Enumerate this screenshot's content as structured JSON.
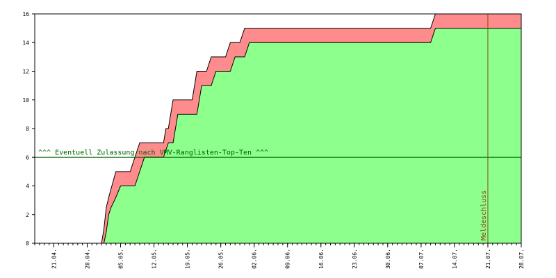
{
  "chart_data": {
    "type": "area",
    "title": "",
    "xlabel": "",
    "ylabel": "",
    "ylim": [
      0,
      16
    ],
    "y_ticks": [
      0,
      2,
      4,
      6,
      8,
      10,
      12,
      14,
      16
    ],
    "x_range_days": [
      0,
      100
    ],
    "x_ticks": [
      {
        "label": "21.04.",
        "day": 4
      },
      {
        "label": "28.04.",
        "day": 11
      },
      {
        "label": "05.05.",
        "day": 18
      },
      {
        "label": "12.05.",
        "day": 25
      },
      {
        "label": "19.05.",
        "day": 32
      },
      {
        "label": "26.05.",
        "day": 39
      },
      {
        "label": "02.06.",
        "day": 46
      },
      {
        "label": "09.06.",
        "day": 53
      },
      {
        "label": "16.06.",
        "day": 60
      },
      {
        "label": "23.06.",
        "day": 67
      },
      {
        "label": "30.06.",
        "day": 74
      },
      {
        "label": "07.07.",
        "day": 81
      },
      {
        "label": "14.07.",
        "day": 88
      },
      {
        "label": "21.07.",
        "day": 95
      },
      {
        "label": "28.07.",
        "day": 102
      }
    ],
    "grid": false,
    "series": [
      {
        "color": "#ff8c8c",
        "points": [
          [
            0,
            0
          ],
          [
            14,
            0
          ],
          [
            14.5,
            1
          ],
          [
            15,
            2.5
          ],
          [
            15.5,
            3.2
          ],
          [
            16,
            3.8
          ],
          [
            17,
            5
          ],
          [
            20,
            5
          ],
          [
            21,
            6
          ],
          [
            22,
            7
          ],
          [
            27,
            7
          ],
          [
            27.5,
            8
          ],
          [
            28,
            8
          ],
          [
            29,
            10
          ],
          [
            33,
            10
          ],
          [
            34,
            12
          ],
          [
            36,
            12
          ],
          [
            37,
            13
          ],
          [
            40,
            13
          ],
          [
            41,
            14
          ],
          [
            43,
            14
          ],
          [
            44,
            15
          ],
          [
            83,
            15
          ],
          [
            84,
            16
          ],
          [
            102,
            16
          ]
        ]
      },
      {
        "color": "#8cff8c",
        "points": [
          [
            0,
            0
          ],
          [
            14.5,
            0
          ],
          [
            15,
            0.8
          ],
          [
            15.5,
            2
          ],
          [
            16,
            2.5
          ],
          [
            17,
            3.2
          ],
          [
            18,
            4
          ],
          [
            21,
            4
          ],
          [
            22,
            5
          ],
          [
            23,
            6
          ],
          [
            27,
            6
          ],
          [
            28,
            7
          ],
          [
            29,
            7
          ],
          [
            30,
            9
          ],
          [
            34,
            9
          ],
          [
            35,
            11
          ],
          [
            37,
            11
          ],
          [
            38,
            12
          ],
          [
            41,
            12
          ],
          [
            42,
            13
          ],
          [
            44,
            13
          ],
          [
            45,
            14
          ],
          [
            83,
            14
          ],
          [
            84,
            15
          ],
          [
            102,
            15
          ]
        ]
      }
    ],
    "annotations": [
      {
        "text": "^^^ Eventuell Zulassung nach VMV-Ranglisten-Top-Ten ^^^",
        "y": 6,
        "color": "#006400"
      },
      {
        "text": "Meldeschluss",
        "x": 95,
        "color": "#8b4513"
      }
    ]
  }
}
